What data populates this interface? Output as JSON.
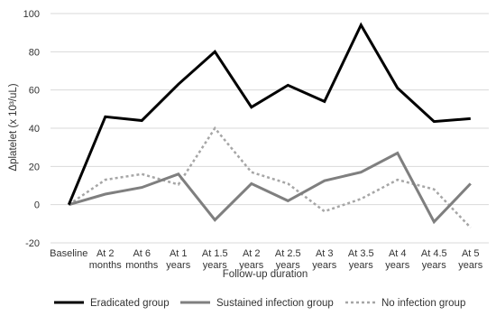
{
  "chart_data": {
    "type": "line",
    "xlabel": "Follow-up duration",
    "ylabel": "Δplatelet (x 10³/uL)",
    "ylim": [
      -20,
      100
    ],
    "yticks": [
      -20,
      0,
      20,
      40,
      60,
      80,
      100
    ],
    "grid": "horizontal",
    "legend_position": "bottom",
    "categories": [
      [
        "Baseline"
      ],
      [
        "At 2",
        "months"
      ],
      [
        "At 6",
        "months"
      ],
      [
        "At 1",
        "years"
      ],
      [
        "At 1.5",
        "years"
      ],
      [
        "At 2",
        "years"
      ],
      [
        "At 2.5",
        "years"
      ],
      [
        "At 3",
        "years"
      ],
      [
        "At 3.5",
        "years"
      ],
      [
        "At 4",
        "years"
      ],
      [
        "At 4.5",
        "years"
      ],
      [
        "At 5",
        "years"
      ]
    ],
    "series": [
      {
        "name": "Eradicated group",
        "color": "#000000",
        "style": "solid",
        "values": [
          0,
          46,
          44,
          63,
          80,
          51,
          62.5,
          54,
          94,
          61,
          43.5,
          45
        ]
      },
      {
        "name": "Sustained infection group",
        "color": "#7f7f7f",
        "style": "solid",
        "values": [
          0,
          5.5,
          9,
          16,
          -8,
          11,
          2,
          12.5,
          17,
          27,
          -9,
          11
        ]
      },
      {
        "name": "No infection group",
        "color": "#a6a6a6",
        "style": "dotted",
        "values": [
          0,
          13,
          16,
          10.5,
          40,
          17,
          11,
          -3.5,
          3,
          13,
          8,
          -12
        ]
      }
    ]
  }
}
